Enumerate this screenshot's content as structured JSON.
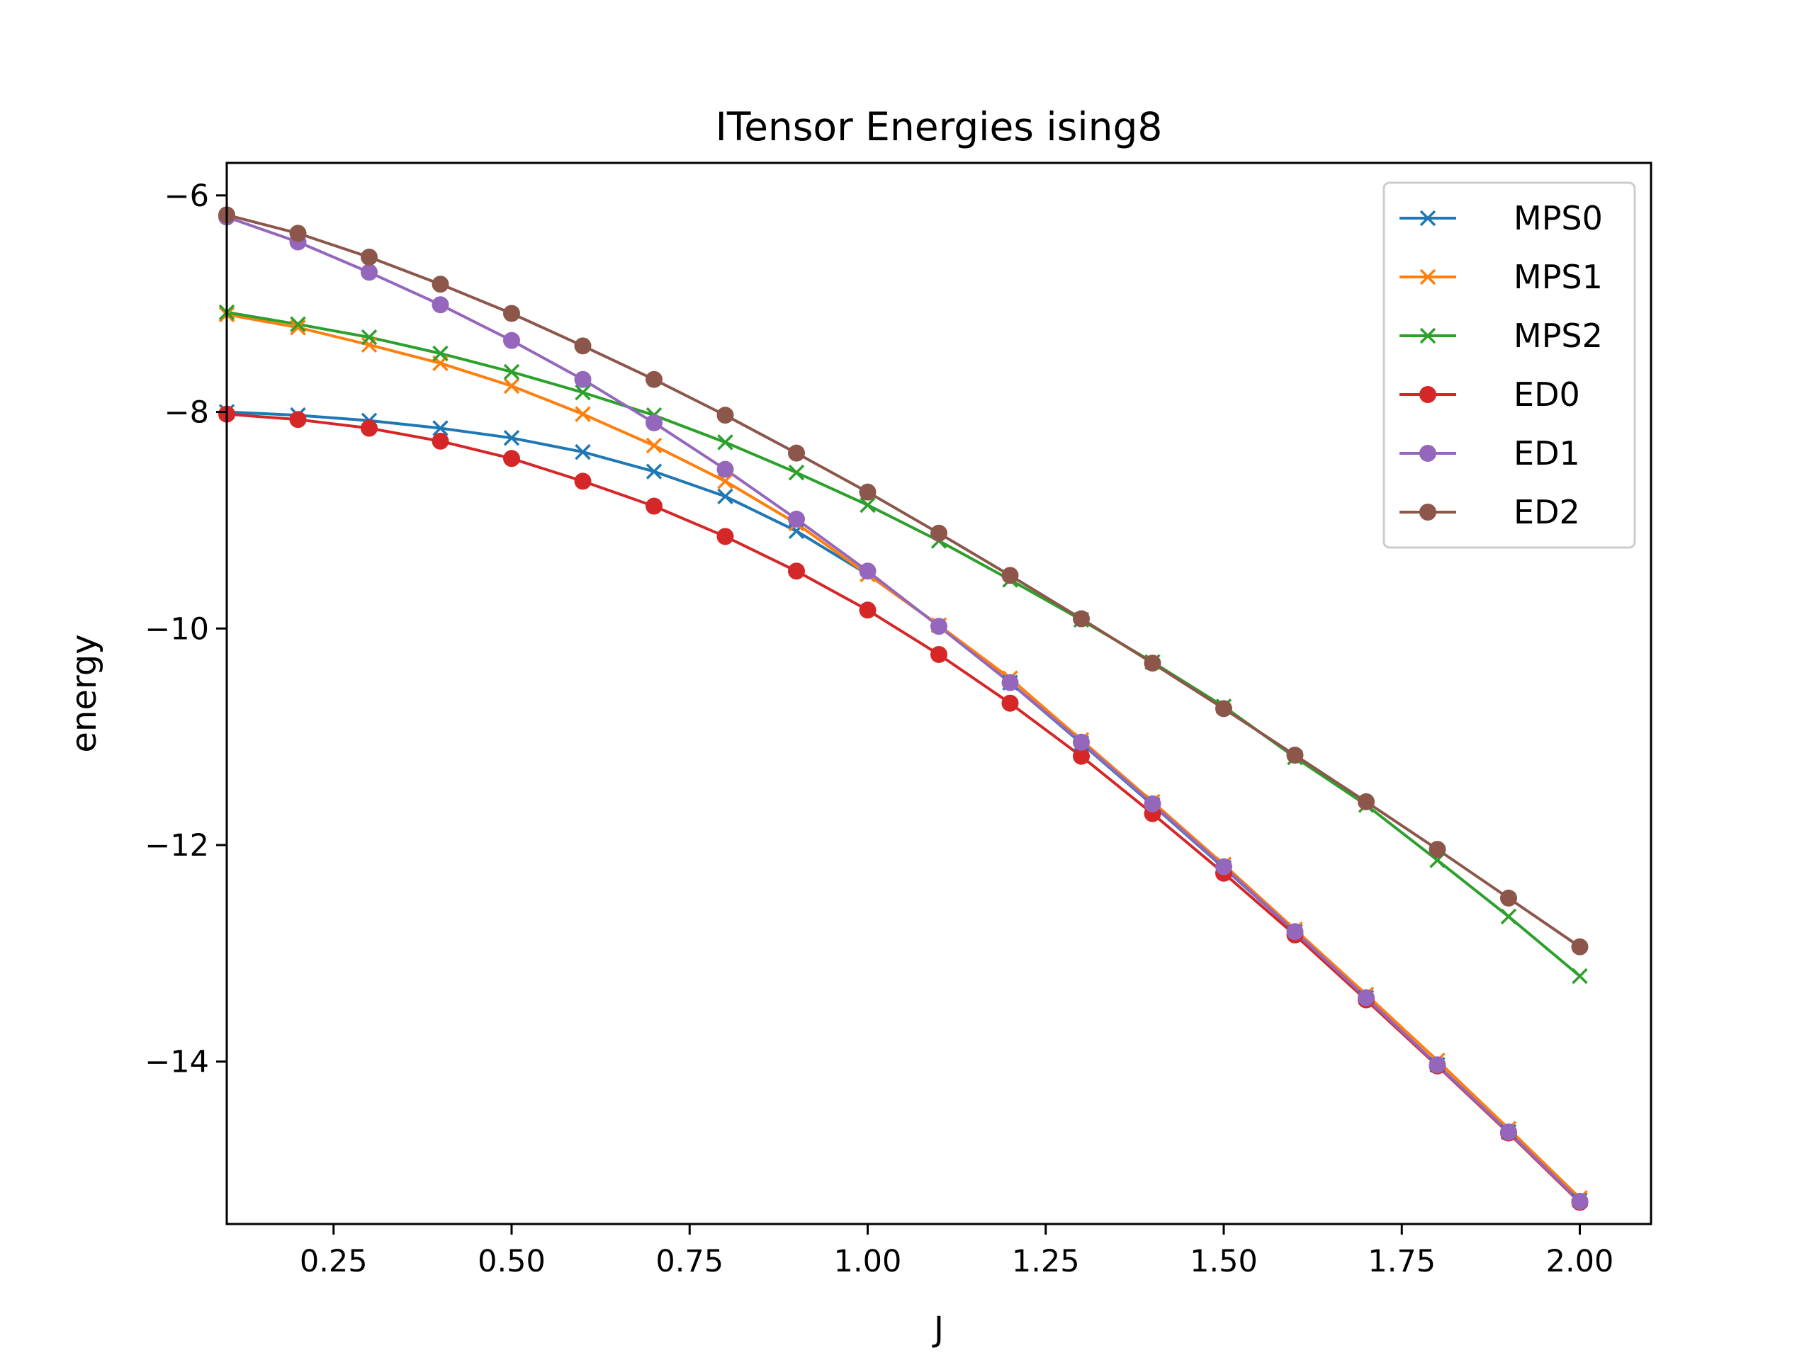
{
  "chart_data": {
    "type": "line",
    "title": "ITensor Energies ising8",
    "xlabel": "J",
    "ylabel": "energy",
    "xlim": [
      0.1,
      2.1
    ],
    "ylim": [
      -15.5,
      -5.7
    ],
    "xticks": [
      0.25,
      0.5,
      0.75,
      1.0,
      1.25,
      1.5,
      1.75,
      2.0
    ],
    "xtick_labels": [
      "0.25",
      "0.50",
      "0.75",
      "1.00",
      "1.25",
      "1.50",
      "1.75",
      "2.00"
    ],
    "yticks": [
      -14,
      -12,
      -10,
      -8,
      -6
    ],
    "ytick_labels": [
      "−14",
      "−12",
      "−10",
      "−8",
      "−6"
    ],
    "grid": false,
    "legend_position": "top-right",
    "x": [
      0.1,
      0.2,
      0.3,
      0.4,
      0.5,
      0.6,
      0.7,
      0.8,
      0.9,
      1.0,
      1.1,
      1.2,
      1.3,
      1.4,
      1.5,
      1.6,
      1.7,
      1.8,
      1.9,
      2.0
    ],
    "series": [
      {
        "name": "MPS0",
        "marker": "x",
        "color": "#1f77b4",
        "values": [
          -8.0,
          -8.03,
          -8.08,
          -8.15,
          -8.24,
          -8.37,
          -8.55,
          -8.78,
          -9.1,
          -9.5,
          -9.97,
          -10.5,
          -11.06,
          -11.63,
          -12.21,
          -12.8,
          -13.41,
          -14.03,
          -14.65,
          -15.28
        ]
      },
      {
        "name": "MPS1",
        "marker": "x",
        "color": "#ff7f0e",
        "values": [
          -7.1,
          -7.22,
          -7.38,
          -7.55,
          -7.76,
          -8.02,
          -8.31,
          -8.64,
          -9.03,
          -9.5,
          -9.97,
          -10.46,
          -11.03,
          -11.6,
          -12.18,
          -12.78,
          -13.38,
          -13.99,
          -14.62,
          -15.26
        ]
      },
      {
        "name": "MPS2",
        "marker": "x",
        "color": "#2ca02c",
        "values": [
          -7.08,
          -7.19,
          -7.31,
          -7.46,
          -7.63,
          -7.82,
          -8.03,
          -8.28,
          -8.56,
          -8.86,
          -9.19,
          -9.55,
          -9.92,
          -10.31,
          -10.72,
          -11.19,
          -11.63,
          -12.14,
          -12.66,
          -13.21
        ]
      },
      {
        "name": "ED0",
        "marker": "o",
        "color": "#d62728",
        "values": [
          -8.02,
          -8.07,
          -8.15,
          -8.27,
          -8.43,
          -8.64,
          -8.87,
          -9.15,
          -9.47,
          -9.83,
          -10.24,
          -10.69,
          -11.18,
          -11.71,
          -12.26,
          -12.83,
          -13.43,
          -14.04,
          -14.66,
          -15.3
        ]
      },
      {
        "name": "ED1",
        "marker": "o",
        "color": "#9467bd",
        "values": [
          -6.2,
          -6.43,
          -6.71,
          -7.01,
          -7.34,
          -7.7,
          -8.1,
          -8.53,
          -8.99,
          -9.47,
          -9.98,
          -10.5,
          -11.05,
          -11.62,
          -12.2,
          -12.8,
          -13.41,
          -14.03,
          -14.65,
          -15.29
        ]
      },
      {
        "name": "ED2",
        "marker": "o",
        "color": "#8c564b",
        "values": [
          -6.18,
          -6.35,
          -6.57,
          -6.82,
          -7.09,
          -7.39,
          -7.7,
          -8.03,
          -8.38,
          -8.74,
          -9.12,
          -9.51,
          -9.91,
          -10.32,
          -10.74,
          -11.17,
          -11.6,
          -12.04,
          -12.49,
          -12.94
        ]
      }
    ]
  }
}
